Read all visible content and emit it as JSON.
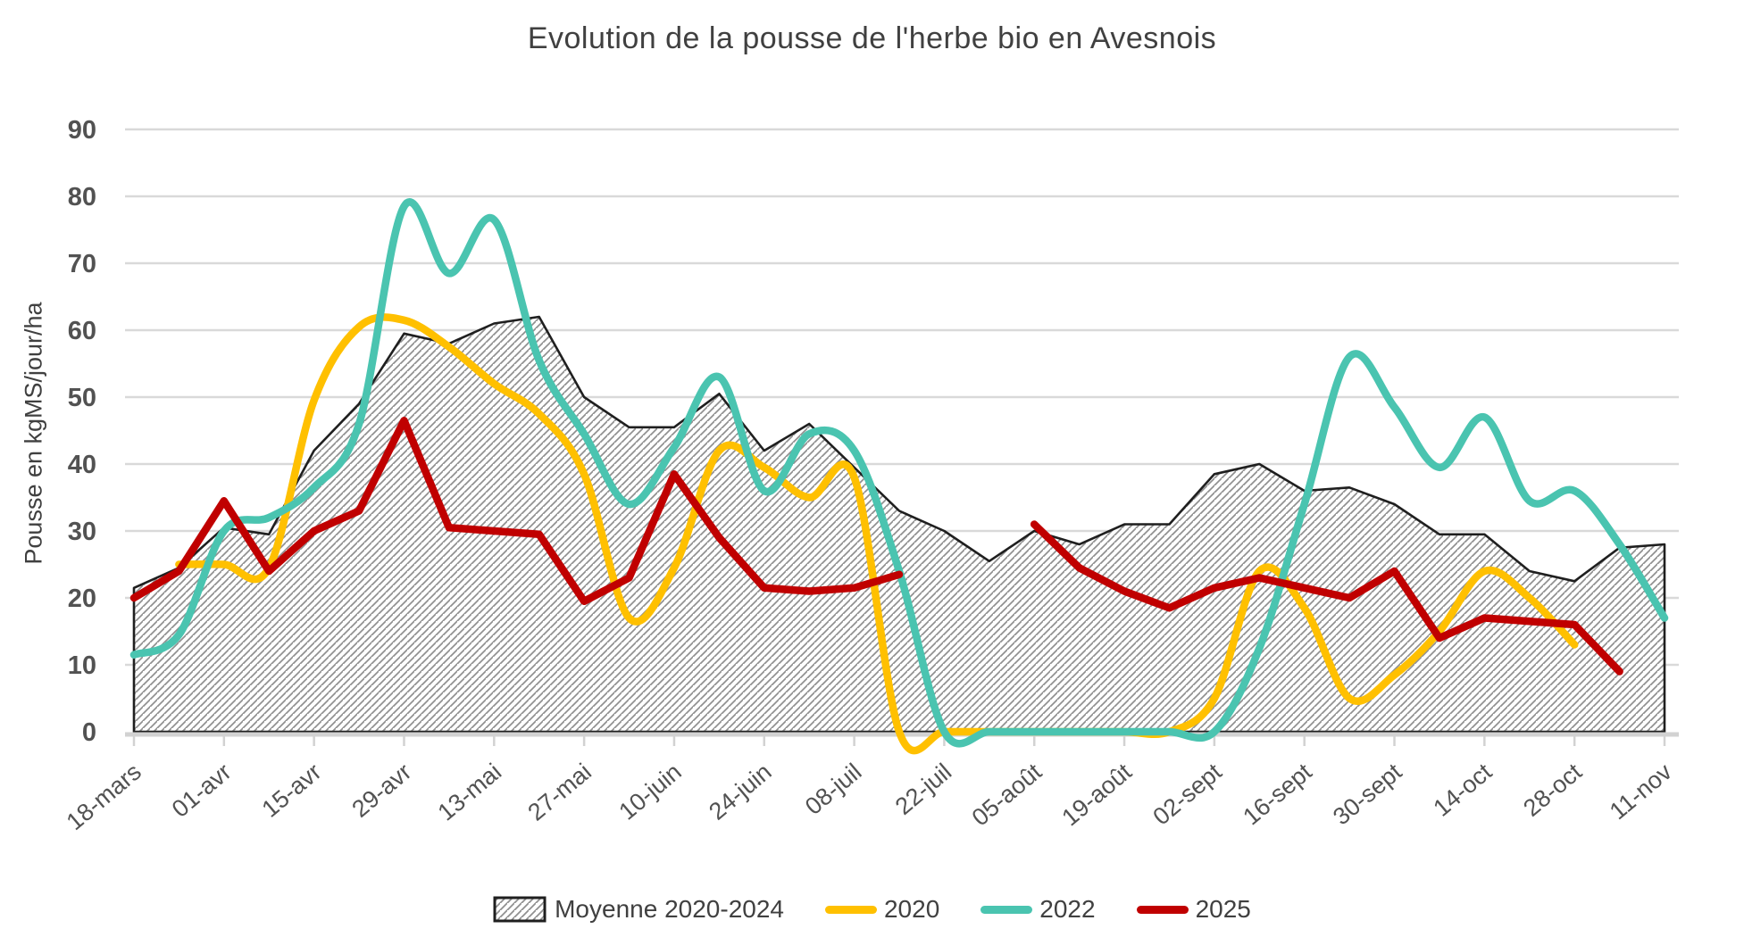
{
  "title": "Evolution de la pousse de l'herbe bio en Avesnois",
  "y_axis_title": "Pousse en kgMS/jour/ha",
  "colors": {
    "gold": "#FFC000",
    "teal": "#4AC4B0",
    "dark_red": "#C00000",
    "area_outline": "#1f1f1f",
    "hatch_line": "#909090",
    "gridline": "#D9D9D9",
    "axis_band": "#D2D2D2",
    "tick_text": "#525252",
    "title_text": "#404040"
  },
  "legend": {
    "items": [
      {
        "label": "Moyenne 2020-2024",
        "swatch": "hatch"
      },
      {
        "label": "2020",
        "swatch": "gold"
      },
      {
        "label": "2022",
        "swatch": "teal"
      },
      {
        "label": "2025",
        "swatch": "dark_red"
      }
    ]
  },
  "chart_data": {
    "type": "line",
    "title": "Evolution de la pousse de l'herbe bio en Avesnois",
    "ylabel": "Pousse en kgMS/jour/ha",
    "ylim": [
      0,
      90
    ],
    "y_tick_step": 10,
    "grid": true,
    "legend_position": "bottom",
    "x": [
      "18-mars",
      "25-mars",
      "01-avr",
      "08-avr",
      "15-avr",
      "22-avr",
      "29-avr",
      "06-mai",
      "13-mai",
      "20-mai",
      "27-mai",
      "03-juin",
      "10-juin",
      "17-juin",
      "24-juin",
      "01-juil",
      "08-juil",
      "15-juil",
      "22-juil",
      "29-juil",
      "05-août",
      "12-août",
      "19-août",
      "26-août",
      "02-sept",
      "09-sept",
      "16-sept",
      "23-sept",
      "30-sept",
      "07-oct",
      "14-oct",
      "21-oct",
      "28-oct",
      "04-nov",
      "11-nov"
    ],
    "x_tick_labels": [
      "18-mars",
      "01-avr",
      "15-avr",
      "29-avr",
      "13-mai",
      "27-mai",
      "10-juin",
      "24-juin",
      "08-juil",
      "22-juil",
      "05-août",
      "19-août",
      "02-sept",
      "16-sept",
      "30-sept",
      "14-oct",
      "28-oct",
      "11-nov"
    ],
    "x_tick_every": 2,
    "series": [
      {
        "name": "Moyenne 2020-2024",
        "kind": "area-hatch",
        "smooth": false,
        "color_key": "area_outline",
        "values": [
          21.5,
          24.5,
          30.5,
          29.5,
          42,
          49,
          59.5,
          58,
          61,
          62,
          50,
          45.5,
          45.5,
          50.5,
          42,
          46,
          39.5,
          33,
          30,
          25.5,
          30,
          28,
          31,
          31,
          38.5,
          40,
          36,
          36.5,
          34,
          29.5,
          29.5,
          24,
          22.5,
          27.5,
          28
        ]
      },
      {
        "name": "2020",
        "kind": "line",
        "smooth": true,
        "color_key": "gold",
        "values": [
          null,
          25,
          25,
          24.5,
          49.5,
          60.5,
          61.5,
          57.5,
          52,
          47.5,
          38.5,
          17,
          24.5,
          42,
          39.5,
          35,
          38,
          0,
          0,
          0,
          0,
          0,
          0,
          0,
          5,
          24,
          18.5,
          5,
          8.5,
          15,
          24,
          20,
          13,
          null,
          null
        ]
      },
      {
        "name": "2022",
        "kind": "line",
        "smooth": true,
        "color_key": "teal",
        "values": [
          11.5,
          14.5,
          30,
          32,
          36.5,
          46,
          78.5,
          68.5,
          76.5,
          55.5,
          44.5,
          34,
          42.5,
          53,
          36,
          44.5,
          42,
          24,
          0,
          0,
          0,
          0,
          0,
          0,
          0,
          12.5,
          34,
          56,
          48.5,
          39.5,
          47,
          34.5,
          36,
          28,
          17
        ]
      },
      {
        "name": "2025",
        "kind": "line",
        "smooth": false,
        "color_key": "dark_red",
        "values": [
          20,
          24,
          34.5,
          24,
          30,
          33,
          46.5,
          30.5,
          30,
          29.5,
          19.5,
          23,
          38.5,
          29,
          21.5,
          21,
          21.5,
          23.5,
          null,
          null,
          31,
          24.5,
          21,
          18.5,
          21.5,
          23,
          21.5,
          20,
          24,
          14,
          17,
          16.5,
          16,
          9,
          null
        ]
      }
    ]
  }
}
